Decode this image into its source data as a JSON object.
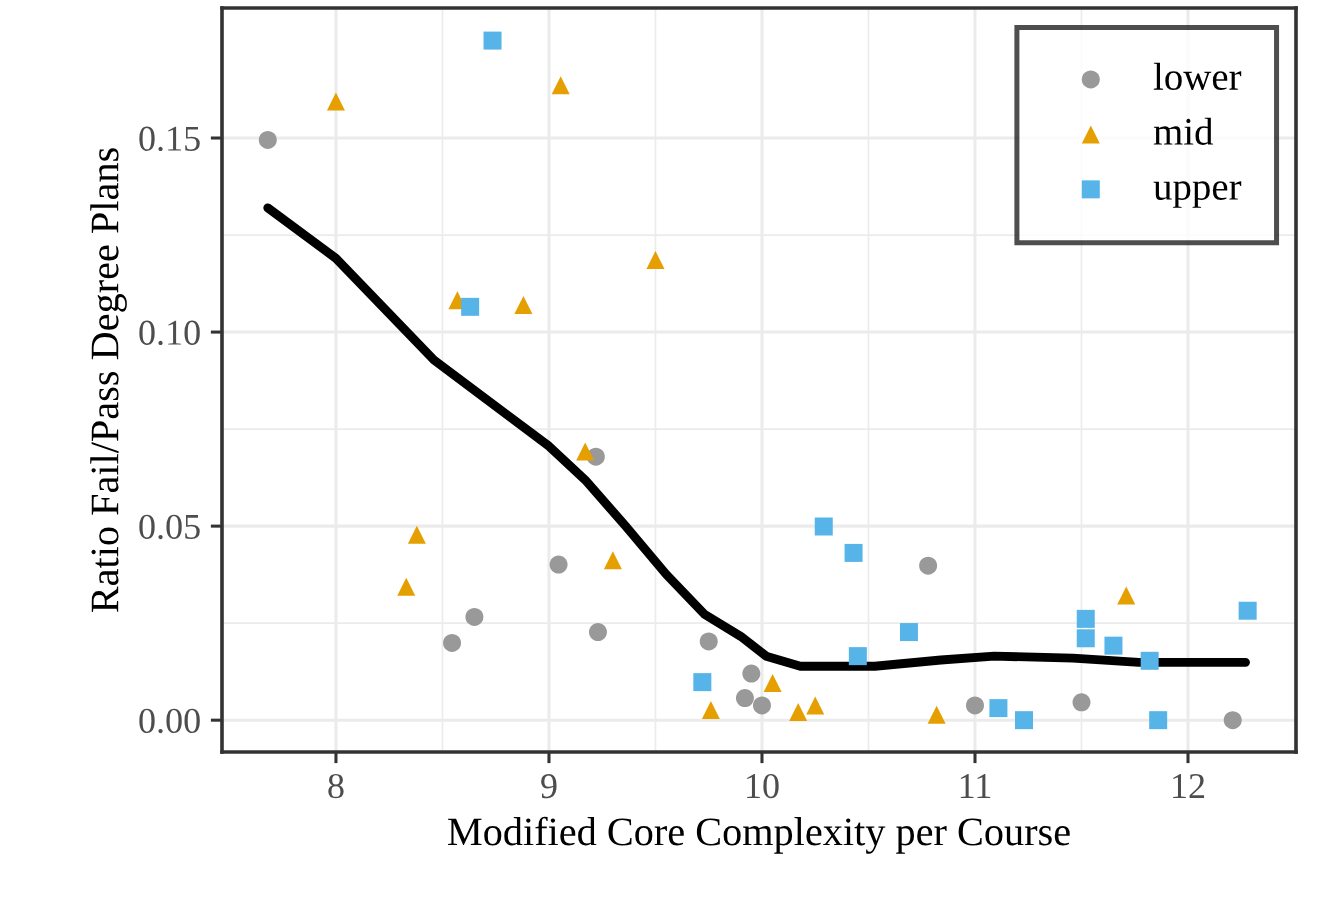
{
  "chart_data": {
    "type": "scatter",
    "xlabel": "Modified Core Complexity per Course",
    "ylabel": "Ratio Fail/Pass Degree Plans",
    "xlim": [
      7.465,
      12.507
    ],
    "ylim": [
      -0.0082,
      0.1835
    ],
    "xticks": [
      8,
      9,
      10,
      11,
      12
    ],
    "yticks": [
      {
        "value": 0,
        "label": "0.00"
      },
      {
        "value": 0.05,
        "label": "0.05"
      },
      {
        "value": 0.1,
        "label": "0.10"
      },
      {
        "value": 0.15,
        "label": "0.15"
      }
    ],
    "grid": true,
    "legend": "top right",
    "series": [
      {
        "name": "lower",
        "color": "#999999",
        "marker": "circle",
        "x": [
          7.68,
          9.22,
          9.045,
          8.65,
          8.545,
          9.23,
          9.75,
          9.92,
          9.95,
          10.0,
          10.78,
          11.0,
          11.5,
          12.21
        ],
        "values": [
          0.1495,
          0.0679,
          0.0401,
          0.0266,
          0.0199,
          0.0227,
          0.0203,
          0.0057,
          0.012,
          0.0038,
          0.0398,
          0.0038,
          0.0046,
          0.0
        ]
      },
      {
        "name": "mid",
        "color": "#E69F00",
        "marker": "triangle",
        "x": [
          8.0,
          9.055,
          9.5,
          8.57,
          8.88,
          9.17,
          8.38,
          8.33,
          9.3,
          9.76,
          10.05,
          10.17,
          10.25,
          10.82,
          11.71
        ],
        "values": [
          0.1594,
          0.1636,
          0.1186,
          0.1082,
          0.107,
          0.0692,
          0.0478,
          0.0344,
          0.0412,
          0.0026,
          0.0096,
          0.0021,
          0.0038,
          0.0014,
          0.0321
        ]
      },
      {
        "name": "upper",
        "color": "#56B4E9",
        "marker": "square",
        "x": [
          8.735,
          8.63,
          9.72,
          10.29,
          10.43,
          10.45,
          10.69,
          11.11,
          11.23,
          11.52,
          11.52,
          11.65,
          11.82,
          11.86,
          12.28
        ],
        "values": [
          0.1751,
          0.1065,
          0.0098,
          0.0499,
          0.0431,
          0.0165,
          0.0227,
          0.0031,
          0.0,
          0.0261,
          0.0211,
          0.0192,
          0.0153,
          0.0,
          0.0282
        ]
      },
      {
        "type": "line",
        "color": "#000000",
        "marker": "none",
        "line_style": "solid",
        "x": [
          7.68,
          8.0,
          8.46,
          9.0,
          9.17,
          9.36,
          9.55,
          9.73,
          9.9,
          10.02,
          10.18,
          10.53,
          10.84,
          11.09,
          11.46,
          11.77,
          12.27
        ],
        "values": [
          0.132,
          0.119,
          0.0928,
          0.0706,
          0.0619,
          0.05,
          0.0376,
          0.0273,
          0.0216,
          0.0165,
          0.0139,
          0.0139,
          0.0155,
          0.0165,
          0.016,
          0.0149,
          0.0149
        ]
      }
    ]
  }
}
